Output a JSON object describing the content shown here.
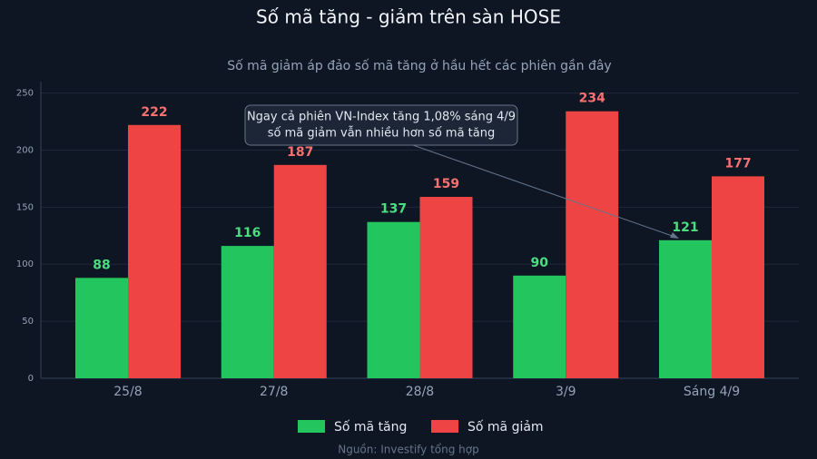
{
  "chart_data": {
    "type": "bar",
    "title": "Số mã tăng - giảm trên sàn HOSE",
    "subtitle": "Số mã giảm áp đảo số mã tăng ở hầu hết các phiên gần đây",
    "categories": [
      "25/8",
      "27/8",
      "28/8",
      "3/9",
      "Sáng 4/9"
    ],
    "series": [
      {
        "name": "Số mã tăng",
        "color": "#22c55e",
        "values": [
          88,
          116,
          137,
          90,
          121
        ]
      },
      {
        "name": "Số mã giảm",
        "color": "#ef4444",
        "values": [
          222,
          187,
          159,
          234,
          177
        ]
      }
    ],
    "ylim": [
      0,
      260
    ],
    "yticks": [
      0,
      50,
      100,
      150,
      200,
      250
    ],
    "grid": true,
    "annotation": [
      "Ngay cả phiên VN-Index tăng 1,08% sáng 4/9",
      "số mã giảm vẫn nhiều hơn số mã tăng"
    ],
    "source": "Nguồn: Investify tổng hợp",
    "legend": "bottom"
  }
}
